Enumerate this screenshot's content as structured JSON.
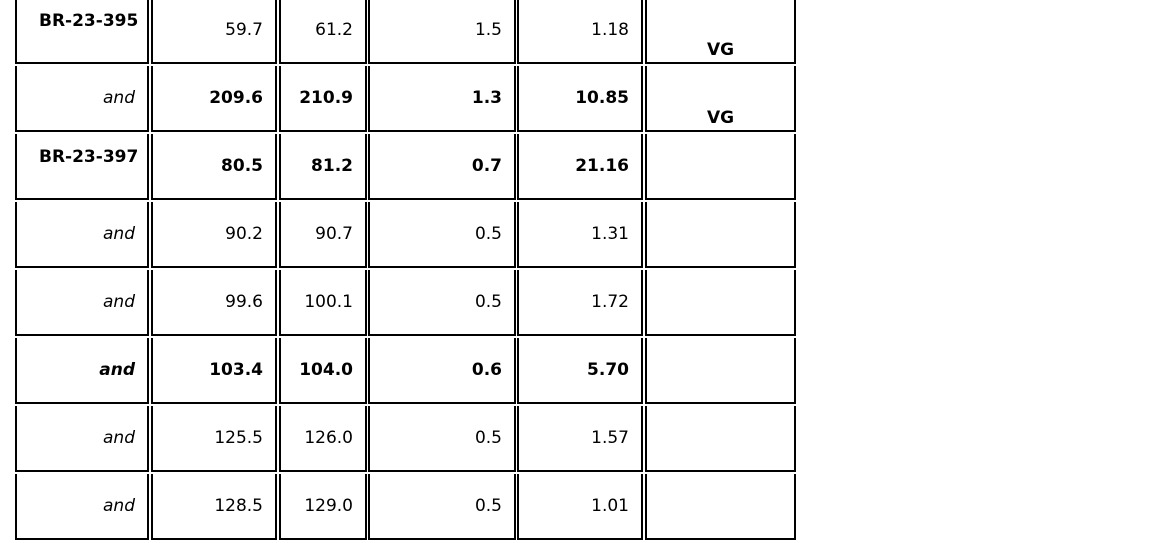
{
  "rows": [
    {
      "hole": "BR-23-395",
      "from": "59.7",
      "to": "61.2",
      "length": "1.5",
      "grade": "1.18",
      "note": "VG",
      "bold": false,
      "label_italic": false
    },
    {
      "hole": "and",
      "from": "209.6",
      "to": "210.9",
      "length": "1.3",
      "grade": "10.85",
      "note": "VG",
      "bold": true,
      "label_italic": true,
      "label_bold": false
    },
    {
      "hole": "BR-23-397",
      "from": "80.5",
      "to": "81.2",
      "length": "0.7",
      "grade": "21.16",
      "note": "",
      "bold": true,
      "label_italic": false
    },
    {
      "hole": "and",
      "from": "90.2",
      "to": "90.7",
      "length": "0.5",
      "grade": "1.31",
      "note": "",
      "bold": false,
      "label_italic": true
    },
    {
      "hole": "and",
      "from": "99.6",
      "to": "100.1",
      "length": "0.5",
      "grade": "1.72",
      "note": "",
      "bold": false,
      "label_italic": true
    },
    {
      "hole": "and",
      "from": "103.4",
      "to": "104.0",
      "length": "0.6",
      "grade": "5.70",
      "note": "",
      "bold": true,
      "label_italic": true,
      "label_bold": true
    },
    {
      "hole": "and",
      "from": "125.5",
      "to": "126.0",
      "length": "0.5",
      "grade": "1.57",
      "note": "",
      "bold": false,
      "label_italic": true
    },
    {
      "hole": "and",
      "from": "128.5",
      "to": "129.0",
      "length": "0.5",
      "grade": "1.01",
      "note": "",
      "bold": false,
      "label_italic": true
    }
  ]
}
